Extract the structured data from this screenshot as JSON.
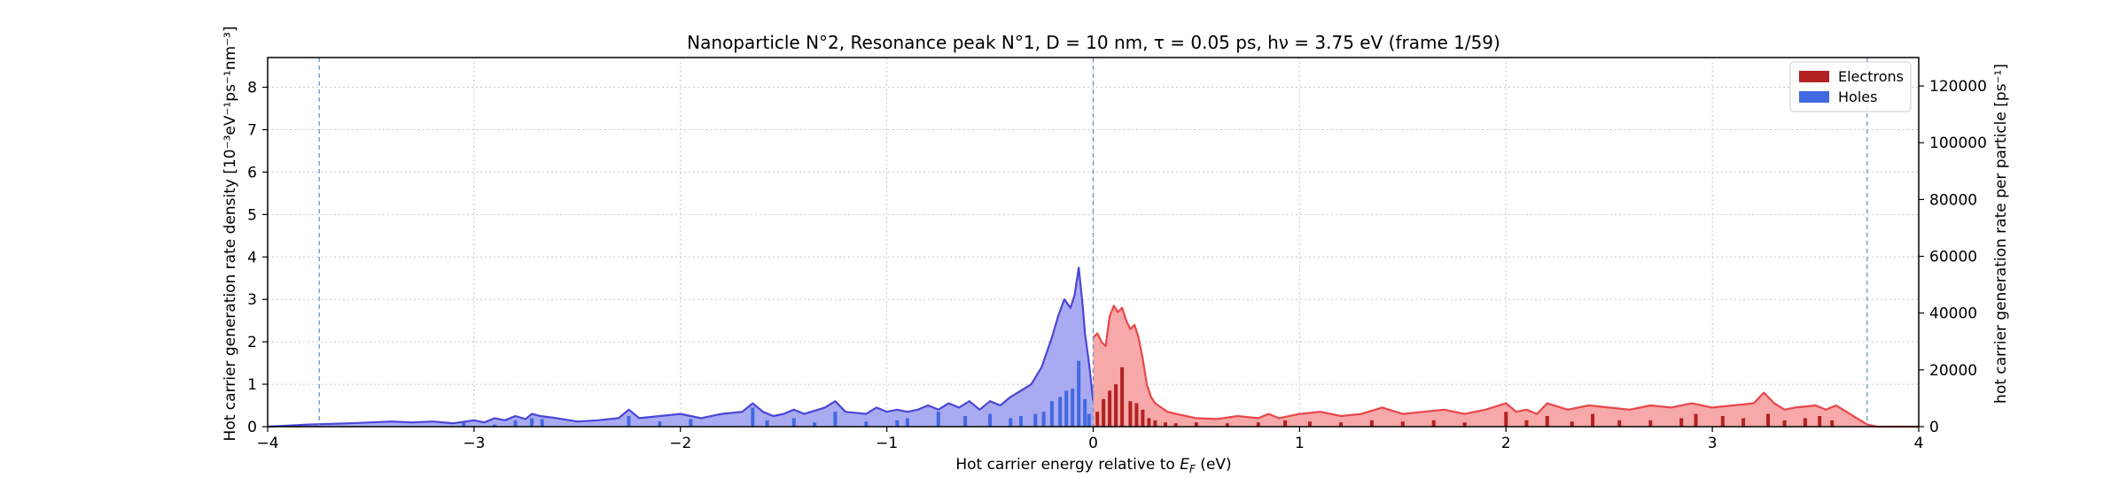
{
  "chart_data": {
    "type": "area",
    "title": "Nanoparticle N°2, Resonance peak N°1, D = 10 nm, τ = 0.05 ps, hν = 3.75 eV   (frame 1/59)",
    "xlabel": "Hot carrier energy relative to E_F (eV)",
    "ylabel_left": "Hot carrier generation rate density [10⁻³eV⁻¹ps⁻¹nm⁻³]",
    "ylabel_right": "hot carrier generation rate per particle [ps⁻¹]",
    "xlim": [
      -4,
      4
    ],
    "ylim_left": [
      0,
      8.7
    ],
    "ylim_right": [
      0,
      130000
    ],
    "x_ticks": [
      -4,
      -3,
      -2,
      -1,
      0,
      1,
      2,
      3,
      4
    ],
    "x_tick_labels": [
      "−4",
      "−3",
      "−2",
      "−1",
      "0",
      "1",
      "2",
      "3",
      "4"
    ],
    "y_left_ticks": [
      0,
      1,
      2,
      3,
      4,
      5,
      6,
      7,
      8
    ],
    "y_left_tick_labels": [
      "0",
      "1",
      "2",
      "3",
      "4",
      "5",
      "6",
      "7",
      "8"
    ],
    "y_right_ticks": [
      0,
      20000,
      40000,
      60000,
      80000,
      100000,
      120000
    ],
    "y_right_tick_labels": [
      "0",
      "20000",
      "40000",
      "60000",
      "80000",
      "100000",
      "120000"
    ],
    "grid": true,
    "legend_position": "top-right",
    "vlines": [
      -3.75,
      0,
      3.75
    ],
    "colors": {
      "electrons_line": "#e8474a",
      "electrons_fill": "#f7a8a8",
      "electrons_bar": "#b22222",
      "holes_line": "#4a46d8",
      "holes_fill": "#aaaaf2",
      "holes_bar": "#4169e1",
      "vline": "#6a95c8",
      "grid": "#c8c8c8"
    },
    "series": [
      {
        "name": "Holes",
        "kind": "density",
        "x": [
          -4.0,
          -3.8,
          -3.6,
          -3.5,
          -3.4,
          -3.3,
          -3.2,
          -3.1,
          -3.0,
          -2.95,
          -2.9,
          -2.85,
          -2.8,
          -2.75,
          -2.72,
          -2.68,
          -2.6,
          -2.5,
          -2.4,
          -2.3,
          -2.25,
          -2.2,
          -2.1,
          -2.0,
          -1.95,
          -1.9,
          -1.8,
          -1.7,
          -1.65,
          -1.6,
          -1.55,
          -1.5,
          -1.45,
          -1.4,
          -1.3,
          -1.25,
          -1.2,
          -1.1,
          -1.05,
          -1.0,
          -0.95,
          -0.9,
          -0.85,
          -0.8,
          -0.75,
          -0.7,
          -0.65,
          -0.6,
          -0.55,
          -0.5,
          -0.45,
          -0.4,
          -0.35,
          -0.3,
          -0.25,
          -0.2,
          -0.17,
          -0.14,
          -0.11,
          -0.09,
          -0.07,
          -0.05,
          -0.04,
          -0.02,
          0.0
        ],
        "y": [
          0.0,
          0.05,
          0.08,
          0.1,
          0.12,
          0.1,
          0.12,
          0.08,
          0.15,
          0.1,
          0.2,
          0.15,
          0.25,
          0.18,
          0.3,
          0.25,
          0.2,
          0.12,
          0.15,
          0.2,
          0.4,
          0.2,
          0.25,
          0.3,
          0.25,
          0.2,
          0.3,
          0.35,
          0.55,
          0.35,
          0.25,
          0.3,
          0.4,
          0.3,
          0.45,
          0.6,
          0.35,
          0.3,
          0.45,
          0.35,
          0.4,
          0.35,
          0.4,
          0.5,
          0.4,
          0.55,
          0.45,
          0.6,
          0.4,
          0.6,
          0.5,
          0.7,
          0.85,
          1.0,
          1.4,
          2.1,
          2.6,
          3.0,
          2.8,
          3.1,
          3.75,
          2.8,
          2.2,
          1.5,
          0.6
        ]
      },
      {
        "name": "Electrons",
        "kind": "density",
        "x": [
          0.0,
          0.02,
          0.04,
          0.06,
          0.08,
          0.1,
          0.12,
          0.14,
          0.16,
          0.18,
          0.2,
          0.22,
          0.24,
          0.26,
          0.28,
          0.3,
          0.33,
          0.36,
          0.4,
          0.45,
          0.5,
          0.6,
          0.7,
          0.8,
          0.85,
          0.9,
          1.0,
          1.1,
          1.2,
          1.3,
          1.4,
          1.5,
          1.6,
          1.7,
          1.8,
          1.9,
          2.0,
          2.05,
          2.1,
          2.15,
          2.2,
          2.3,
          2.4,
          2.5,
          2.6,
          2.7,
          2.8,
          2.9,
          2.95,
          3.0,
          3.1,
          3.2,
          3.25,
          3.3,
          3.35,
          3.4,
          3.5,
          3.55,
          3.6,
          3.65,
          3.7,
          3.75,
          3.8,
          4.0
        ],
        "y": [
          2.1,
          2.2,
          2.0,
          1.9,
          2.6,
          2.85,
          2.7,
          2.8,
          2.5,
          2.3,
          2.4,
          2.1,
          1.6,
          1.0,
          0.7,
          0.55,
          0.45,
          0.35,
          0.3,
          0.25,
          0.2,
          0.18,
          0.25,
          0.2,
          0.3,
          0.2,
          0.3,
          0.35,
          0.25,
          0.3,
          0.45,
          0.3,
          0.35,
          0.4,
          0.3,
          0.4,
          0.55,
          0.35,
          0.4,
          0.3,
          0.55,
          0.4,
          0.5,
          0.45,
          0.4,
          0.5,
          0.45,
          0.55,
          0.5,
          0.45,
          0.5,
          0.55,
          0.8,
          0.55,
          0.4,
          0.45,
          0.5,
          0.4,
          0.5,
          0.35,
          0.2,
          0.05,
          0.0,
          0.0
        ]
      },
      {
        "name": "Holes",
        "kind": "bars",
        "x": [
          -3.05,
          -2.9,
          -2.8,
          -2.72,
          -2.67,
          -2.25,
          -2.1,
          -1.95,
          -1.65,
          -1.58,
          -1.45,
          -1.35,
          -1.25,
          -1.1,
          -0.95,
          -0.9,
          -0.75,
          -0.62,
          -0.5,
          -0.4,
          -0.35,
          -0.28,
          -0.24,
          -0.2,
          -0.16,
          -0.13,
          -0.1,
          -0.07,
          -0.04,
          -0.02
        ],
        "y": [
          0.1,
          0.05,
          0.15,
          0.2,
          0.18,
          0.25,
          0.12,
          0.18,
          0.45,
          0.15,
          0.2,
          0.1,
          0.35,
          0.12,
          0.15,
          0.2,
          0.35,
          0.25,
          0.3,
          0.2,
          0.25,
          0.3,
          0.35,
          0.6,
          0.7,
          0.85,
          0.9,
          1.55,
          0.65,
          0.3
        ]
      },
      {
        "name": "Electrons",
        "kind": "bars",
        "x": [
          0.02,
          0.05,
          0.08,
          0.11,
          0.14,
          0.18,
          0.21,
          0.24,
          0.27,
          0.3,
          0.35,
          0.4,
          0.5,
          0.65,
          0.8,
          0.93,
          1.05,
          1.2,
          1.35,
          1.5,
          1.65,
          1.8,
          2.0,
          2.1,
          2.2,
          2.32,
          2.42,
          2.55,
          2.7,
          2.85,
          2.92,
          3.05,
          3.15,
          3.27,
          3.35,
          3.45,
          3.52,
          3.58
        ],
        "y": [
          0.35,
          0.65,
          0.85,
          1.0,
          1.4,
          0.6,
          0.55,
          0.4,
          0.2,
          0.15,
          0.1,
          0.08,
          0.1,
          0.08,
          0.1,
          0.15,
          0.12,
          0.1,
          0.15,
          0.12,
          0.15,
          0.1,
          0.35,
          0.15,
          0.25,
          0.12,
          0.3,
          0.15,
          0.15,
          0.2,
          0.3,
          0.25,
          0.2,
          0.3,
          0.15,
          0.2,
          0.25,
          0.15
        ]
      }
    ],
    "legend": [
      {
        "label": "Electrons",
        "color": "#b22222"
      },
      {
        "label": "Holes",
        "color": "#4169e1"
      }
    ]
  }
}
